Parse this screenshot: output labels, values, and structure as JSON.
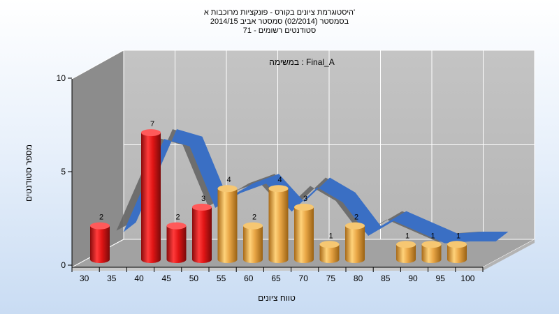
{
  "chart_data": {
    "type": "bar",
    "title_lines": [
      "היסטוגרמת ציונים בקורס - פונקציות מרוכבות א'",
      "בסמסטר  (02/2014)  סמסטר אביב 2014/15",
      "סטודנטים רשומים - 71"
    ],
    "annotation": "במשימה : Final_A",
    "xlabel": "טווח ציונים",
    "ylabel": "מספר סטודנטים",
    "ylim": [
      0,
      10
    ],
    "yticks": [
      0,
      5,
      10
    ],
    "xticks": [
      30,
      35,
      40,
      45,
      50,
      55,
      60,
      65,
      70,
      75,
      80,
      85,
      90,
      95,
      100
    ],
    "bars": [
      {
        "x": 30,
        "value": 2,
        "color": "red"
      },
      {
        "x": 40,
        "value": 7,
        "color": "red"
      },
      {
        "x": 45,
        "value": 2,
        "color": "red"
      },
      {
        "x": 50,
        "value": 3,
        "color": "red"
      },
      {
        "x": 55,
        "value": 4,
        "color": "orange"
      },
      {
        "x": 60,
        "value": 2,
        "color": "orange"
      },
      {
        "x": 65,
        "value": 4,
        "color": "orange"
      },
      {
        "x": 70,
        "value": 3,
        "color": "orange"
      },
      {
        "x": 75,
        "value": 1,
        "color": "orange"
      },
      {
        "x": 80,
        "value": 2,
        "color": "orange"
      },
      {
        "x": 90,
        "value": 1,
        "color": "orange"
      },
      {
        "x": 95,
        "value": 1,
        "color": "orange"
      },
      {
        "x": 100,
        "value": 1,
        "color": "orange"
      }
    ],
    "curve": {
      "x": [
        32,
        40,
        45,
        50,
        55,
        60,
        65,
        70,
        75,
        80,
        85,
        90,
        95,
        100,
        105
      ],
      "values": [
        2,
        7,
        6.6,
        3.3,
        4.1,
        4.6,
        3.1,
        4.4,
        3.6,
        1.8,
        2.6,
        2.0,
        1.4,
        1.5,
        1.5
      ]
    },
    "colors": {
      "red": "#d81818",
      "orange": "#e0a040",
      "curve": "#3a6fc4",
      "curve_side": "#666666",
      "wall_left": "#8a8a8a",
      "wall_back": "#bfbfbf",
      "floor": "#9e9e9e"
    },
    "grid": true
  }
}
